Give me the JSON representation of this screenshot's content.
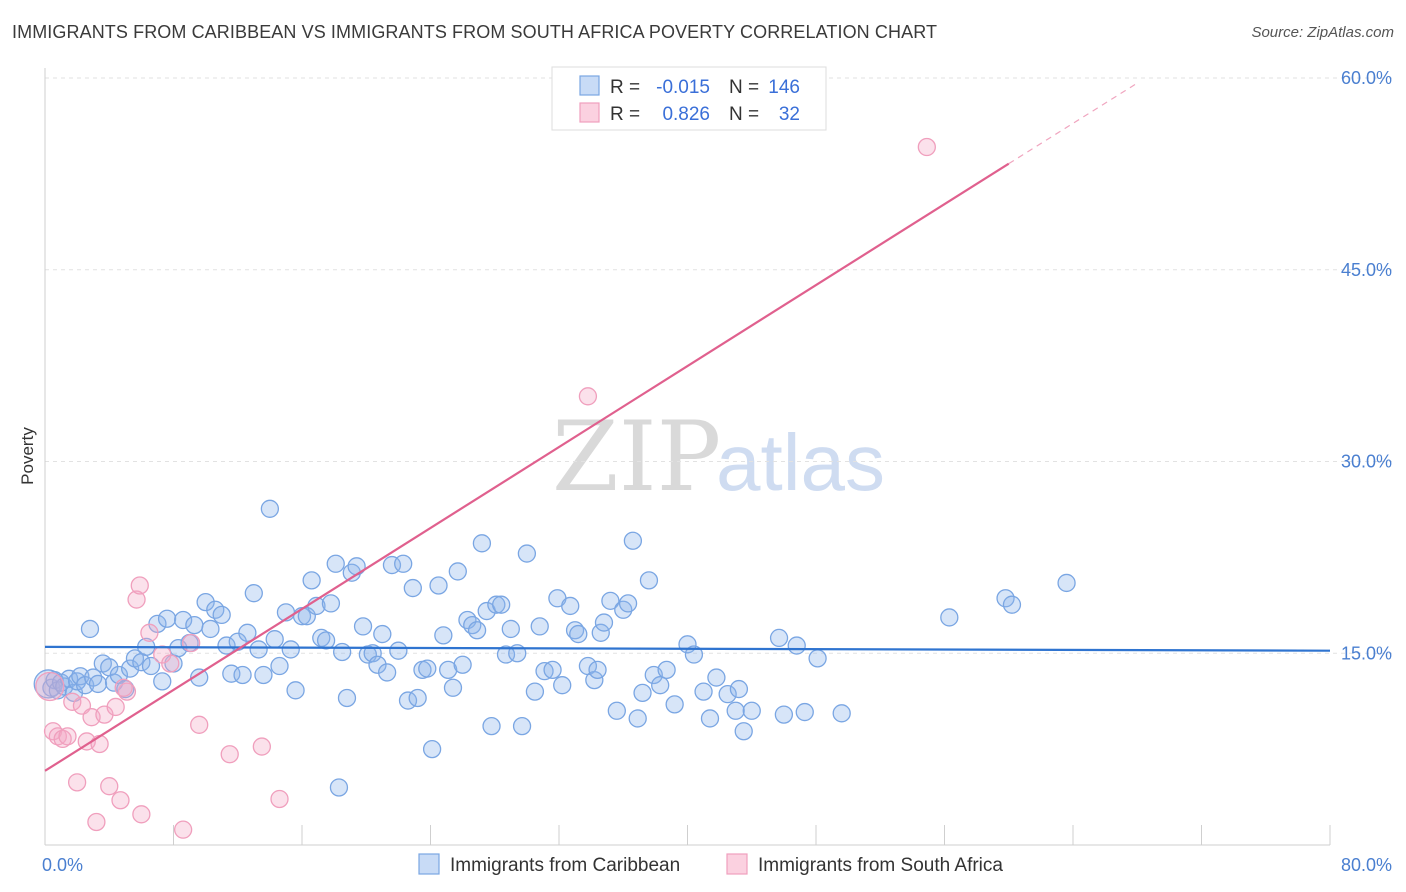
{
  "title": "IMMIGRANTS FROM CARIBBEAN VS IMMIGRANTS FROM SOUTH AFRICA POVERTY CORRELATION CHART",
  "source": "Source: ZipAtlas.com",
  "watermark": {
    "zip": "ZIP",
    "atlas": "atlas"
  },
  "chart_data": {
    "type": "scatter",
    "title": "IMMIGRANTS FROM CARIBBEAN VS IMMIGRANTS FROM SOUTH AFRICA POVERTY CORRELATION CHART",
    "xlabel": "",
    "ylabel": "Poverty",
    "xlim": [
      0,
      80
    ],
    "ylim": [
      0,
      60
    ],
    "x_tick_labels": [
      {
        "value": 0,
        "label": "0.0%"
      },
      {
        "value": 80,
        "label": "80.0%"
      }
    ],
    "y_ticks": [
      {
        "value": 15,
        "label": "15.0%"
      },
      {
        "value": 30,
        "label": "30.0%"
      },
      {
        "value": 45,
        "label": "45.0%"
      },
      {
        "value": 60,
        "label": "60.0%"
      }
    ],
    "grid": "horizontal dashed",
    "legend_position": "top-center",
    "stats": [
      {
        "r_label": "R =",
        "r": "-0.015",
        "n_label": "N =",
        "n": "146"
      },
      {
        "r_label": "R =",
        "r": "0.826",
        "n_label": "N =",
        "n": "32"
      }
    ],
    "series": [
      {
        "name": "Immigrants from Caribbean",
        "color": "#7aa6e3",
        "line_color": "#2f74d0",
        "trend": {
          "x0": 0,
          "y0": 15.5,
          "x1": 80,
          "y1": 15.2
        },
        "points": [
          [
            0.2,
            12.6
          ],
          [
            0.4,
            12.3
          ],
          [
            0.6,
            12.9
          ],
          [
            0.8,
            12.1
          ],
          [
            1.0,
            12.7
          ],
          [
            1.2,
            12.4
          ],
          [
            1.5,
            13.0
          ],
          [
            1.8,
            11.9
          ],
          [
            2.0,
            12.8
          ],
          [
            2.2,
            13.2
          ],
          [
            2.5,
            12.5
          ],
          [
            2.8,
            16.9
          ],
          [
            3.0,
            13.1
          ],
          [
            3.3,
            12.6
          ],
          [
            3.6,
            14.2
          ],
          [
            4.0,
            13.9
          ],
          [
            4.3,
            12.7
          ],
          [
            4.6,
            13.3
          ],
          [
            5.0,
            12.2
          ],
          [
            5.3,
            13.8
          ],
          [
            5.6,
            14.6
          ],
          [
            6.0,
            14.3
          ],
          [
            6.3,
            15.5
          ],
          [
            6.6,
            14.0
          ],
          [
            7.0,
            17.3
          ],
          [
            7.3,
            12.8
          ],
          [
            7.6,
            17.7
          ],
          [
            8.0,
            14.2
          ],
          [
            8.3,
            15.4
          ],
          [
            8.6,
            17.6
          ],
          [
            9.0,
            15.8
          ],
          [
            9.3,
            17.2
          ],
          [
            9.6,
            13.1
          ],
          [
            10.0,
            19.0
          ],
          [
            10.3,
            16.9
          ],
          [
            10.6,
            18.4
          ],
          [
            11.0,
            18.0
          ],
          [
            11.3,
            15.6
          ],
          [
            11.6,
            13.4
          ],
          [
            12.0,
            15.9
          ],
          [
            12.3,
            13.3
          ],
          [
            12.6,
            16.6
          ],
          [
            13.0,
            19.7
          ],
          [
            13.3,
            15.3
          ],
          [
            13.6,
            13.3
          ],
          [
            14.0,
            26.3
          ],
          [
            14.3,
            16.1
          ],
          [
            14.6,
            14.0
          ],
          [
            15.0,
            18.2
          ],
          [
            15.3,
            15.3
          ],
          [
            15.6,
            12.1
          ],
          [
            16.0,
            17.9
          ],
          [
            16.3,
            17.9
          ],
          [
            16.6,
            20.7
          ],
          [
            16.9,
            18.7
          ],
          [
            17.2,
            16.2
          ],
          [
            17.5,
            16.0
          ],
          [
            17.8,
            18.9
          ],
          [
            18.1,
            22.0
          ],
          [
            18.5,
            15.1
          ],
          [
            18.8,
            11.5
          ],
          [
            19.1,
            21.3
          ],
          [
            19.4,
            21.8
          ],
          [
            19.8,
            17.1
          ],
          [
            20.1,
            14.9
          ],
          [
            20.4,
            15.0
          ],
          [
            20.7,
            14.1
          ],
          [
            21.0,
            16.5
          ],
          [
            21.3,
            13.5
          ],
          [
            21.6,
            21.9
          ],
          [
            22.0,
            15.2
          ],
          [
            22.3,
            22.0
          ],
          [
            22.6,
            11.3
          ],
          [
            22.9,
            20.1
          ],
          [
            23.2,
            11.5
          ],
          [
            23.5,
            13.7
          ],
          [
            23.8,
            13.8
          ],
          [
            24.1,
            7.5
          ],
          [
            24.5,
            20.3
          ],
          [
            24.8,
            16.4
          ],
          [
            25.1,
            13.7
          ],
          [
            25.4,
            12.3
          ],
          [
            25.7,
            21.4
          ],
          [
            26.0,
            14.1
          ],
          [
            26.3,
            17.6
          ],
          [
            26.6,
            17.2
          ],
          [
            26.9,
            16.8
          ],
          [
            27.2,
            23.6
          ],
          [
            27.5,
            18.3
          ],
          [
            27.8,
            9.3
          ],
          [
            28.1,
            18.8
          ],
          [
            28.4,
            18.8
          ],
          [
            28.7,
            14.9
          ],
          [
            29.0,
            16.9
          ],
          [
            29.4,
            15.0
          ],
          [
            29.7,
            9.3
          ],
          [
            30.0,
            22.8
          ],
          [
            30.5,
            12.0
          ],
          [
            30.8,
            17.1
          ],
          [
            31.1,
            13.6
          ],
          [
            31.6,
            13.7
          ],
          [
            31.9,
            19.3
          ],
          [
            32.2,
            12.5
          ],
          [
            32.7,
            18.7
          ],
          [
            33.0,
            16.8
          ],
          [
            33.2,
            16.5
          ],
          [
            33.8,
            14.0
          ],
          [
            34.2,
            12.9
          ],
          [
            34.4,
            13.7
          ],
          [
            34.6,
            16.6
          ],
          [
            34.8,
            17.4
          ],
          [
            35.2,
            19.1
          ],
          [
            35.6,
            10.5
          ],
          [
            36.0,
            18.4
          ],
          [
            36.3,
            18.9
          ],
          [
            36.6,
            23.8
          ],
          [
            36.9,
            9.9
          ],
          [
            37.2,
            11.9
          ],
          [
            37.6,
            20.7
          ],
          [
            37.9,
            13.3
          ],
          [
            38.3,
            12.5
          ],
          [
            38.7,
            13.7
          ],
          [
            39.2,
            11.0
          ],
          [
            40.0,
            15.7
          ],
          [
            40.4,
            14.9
          ],
          [
            41.0,
            12.0
          ],
          [
            41.4,
            9.9
          ],
          [
            41.8,
            13.1
          ],
          [
            42.5,
            11.8
          ],
          [
            43.0,
            10.5
          ],
          [
            43.2,
            12.2
          ],
          [
            43.5,
            8.9
          ],
          [
            44.0,
            10.5
          ],
          [
            45.7,
            16.2
          ],
          [
            46.0,
            10.2
          ],
          [
            46.8,
            15.6
          ],
          [
            47.3,
            10.4
          ],
          [
            48.1,
            14.6
          ],
          [
            49.6,
            10.3
          ],
          [
            56.3,
            17.8
          ],
          [
            59.8,
            19.3
          ],
          [
            60.2,
            18.8
          ],
          [
            63.6,
            20.5
          ],
          [
            18.3,
            4.5
          ]
        ]
      },
      {
        "name": "Immigrants from South Africa",
        "color": "#f09fbd",
        "line_color": "#e0608e",
        "trend": {
          "x0": 0,
          "y0": 5.8,
          "x1": 60,
          "y1": 53.3
        },
        "trend_dashed": {
          "x0": 60,
          "y0": 53.3,
          "x1": 68,
          "y1": 59.6
        },
        "points": [
          [
            0.3,
            12.4
          ],
          [
            0.5,
            8.9
          ],
          [
            0.8,
            8.5
          ],
          [
            1.1,
            8.3
          ],
          [
            1.4,
            8.5
          ],
          [
            1.7,
            11.2
          ],
          [
            2.0,
            4.9
          ],
          [
            2.3,
            10.9
          ],
          [
            2.6,
            8.1
          ],
          [
            2.9,
            10.0
          ],
          [
            3.2,
            1.8
          ],
          [
            3.4,
            7.9
          ],
          [
            3.7,
            10.2
          ],
          [
            4.0,
            4.6
          ],
          [
            4.4,
            10.8
          ],
          [
            4.7,
            3.5
          ],
          [
            5.1,
            12.0
          ],
          [
            5.7,
            19.2
          ],
          [
            5.9,
            20.3
          ],
          [
            6.0,
            2.4
          ],
          [
            6.5,
            16.6
          ],
          [
            7.3,
            14.9
          ],
          [
            7.8,
            14.2
          ],
          [
            8.6,
            1.2
          ],
          [
            9.1,
            15.8
          ],
          [
            9.6,
            9.4
          ],
          [
            11.5,
            7.1
          ],
          [
            13.5,
            7.7
          ],
          [
            14.6,
            3.6
          ],
          [
            33.8,
            35.1
          ],
          [
            54.9,
            54.6
          ],
          [
            4.9,
            12.3
          ]
        ]
      }
    ]
  }
}
